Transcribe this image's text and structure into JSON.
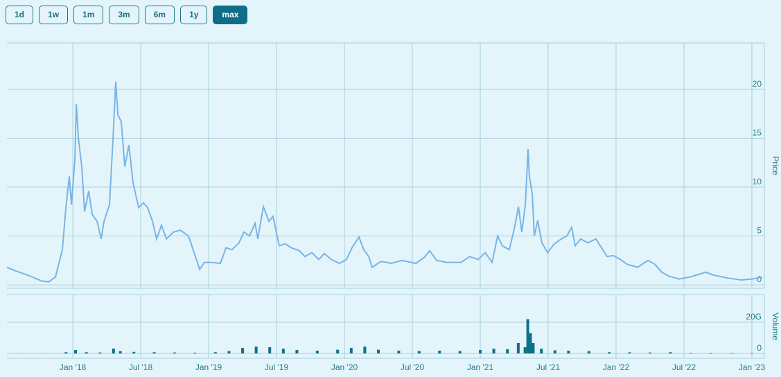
{
  "range_buttons": [
    "1d",
    "1w",
    "1m",
    "3m",
    "6m",
    "1y",
    "max"
  ],
  "selected_range": "max",
  "chart_data": [
    {
      "type": "line",
      "y_label": "Price",
      "color": "#7ab3e6",
      "grid": true,
      "xlim": [
        2017.515,
        2023.092
      ],
      "ylim": [
        -0.35,
        24.75
      ],
      "yticks": [
        0,
        5,
        10,
        15,
        20
      ],
      "x": [
        2017.515,
        2017.566,
        2017.668,
        2017.77,
        2017.821,
        2017.872,
        2017.923,
        2017.949,
        2017.974,
        2017.99,
        2018.015,
        2018.026,
        2018.041,
        2018.066,
        2018.087,
        2018.117,
        2018.143,
        2018.179,
        2018.209,
        2018.23,
        2018.27,
        2018.296,
        2018.316,
        2018.332,
        2018.357,
        2018.383,
        2018.413,
        2018.444,
        2018.485,
        2018.52,
        2018.551,
        2018.587,
        2018.617,
        2018.653,
        2018.689,
        2018.74,
        2018.791,
        2018.852,
        2018.893,
        2018.934,
        2018.969,
        2019.02,
        2019.087,
        2019.128,
        2019.173,
        2019.224,
        2019.26,
        2019.301,
        2019.342,
        2019.362,
        2019.403,
        2019.444,
        2019.474,
        2019.52,
        2019.566,
        2019.607,
        2019.668,
        2019.709,
        2019.76,
        2019.811,
        2019.852,
        2019.903,
        2019.964,
        2020.015,
        2020.056,
        2020.107,
        2020.143,
        2020.179,
        2020.204,
        2020.27,
        2020.347,
        2020.423,
        2020.526,
        2020.587,
        2020.628,
        2020.679,
        2020.755,
        2020.857,
        2020.923,
        2020.985,
        2021.036,
        2021.087,
        2021.128,
        2021.163,
        2021.214,
        2021.25,
        2021.281,
        2021.306,
        2021.332,
        2021.352,
        2021.362,
        2021.383,
        2021.398,
        2021.423,
        2021.454,
        2021.495,
        2021.546,
        2021.597,
        2021.638,
        2021.673,
        2021.699,
        2021.74,
        2021.791,
        2021.852,
        2021.893,
        2021.934,
        2021.98,
        2022.031,
        2022.082,
        2022.158,
        2022.235,
        2022.286,
        2022.337,
        2022.388,
        2022.464,
        2022.541,
        2022.617,
        2022.658,
        2022.719,
        2022.821,
        2022.923,
        2023.0,
        2023.077
      ],
      "values": [
        1.8,
        1.5,
        1.0,
        0.4,
        0.3,
        0.8,
        3.6,
        7.9,
        11.1,
        8.2,
        12.8,
        18.5,
        15.0,
        12.1,
        7.5,
        9.6,
        7.2,
        6.5,
        4.7,
        6.5,
        8.2,
        15.0,
        20.8,
        17.4,
        16.7,
        12.1,
        14.3,
        10.4,
        7.9,
        8.4,
        7.9,
        6.5,
        4.7,
        6.1,
        4.7,
        5.4,
        5.6,
        5.0,
        3.3,
        1.6,
        2.3,
        2.3,
        2.2,
        3.8,
        3.6,
        4.3,
        5.4,
        5.0,
        6.3,
        4.7,
        8.0,
        6.5,
        7.0,
        4.0,
        4.2,
        3.8,
        3.5,
        2.9,
        3.3,
        2.6,
        3.2,
        2.6,
        2.2,
        2.6,
        3.8,
        4.9,
        3.6,
        2.9,
        1.8,
        2.4,
        2.2,
        2.5,
        2.2,
        2.8,
        3.5,
        2.5,
        2.3,
        2.3,
        2.9,
        2.6,
        3.3,
        2.3,
        5.0,
        4.0,
        3.6,
        5.7,
        8.0,
        5.4,
        8.2,
        13.9,
        11.1,
        9.3,
        5.0,
        6.6,
        4.3,
        3.3,
        4.2,
        4.7,
        5.0,
        5.9,
        4.0,
        4.7,
        4.3,
        4.7,
        3.8,
        2.9,
        3.0,
        2.6,
        2.1,
        1.8,
        2.5,
        2.1,
        1.3,
        0.9,
        0.6,
        0.8,
        1.1,
        1.3,
        1.0,
        0.7,
        0.5,
        0.6,
        0.8
      ]
    },
    {
      "type": "bar",
      "y_label": "Volume",
      "color": "#0e6f8a",
      "grid": true,
      "xlim": [
        2017.515,
        2023.092
      ],
      "ylim": [
        -3.1,
        37.8
      ],
      "yticks": [
        0,
        {
          "value": 20,
          "label": "20G"
        }
      ],
      "xticks": [
        {
          "value": 2018.0,
          "label": "Jan '18"
        },
        {
          "value": 2018.5,
          "label": "Jul '18"
        },
        {
          "value": 2019.0,
          "label": "Jan '19"
        },
        {
          "value": 2019.5,
          "label": "Jul '19"
        },
        {
          "value": 2020.0,
          "label": "Jan '20"
        },
        {
          "value": 2020.5,
          "label": "Jul '20"
        },
        {
          "value": 2021.0,
          "label": "Jan '21"
        },
        {
          "value": 2021.5,
          "label": "Jul '21"
        },
        {
          "value": 2022.0,
          "label": "Jan '22"
        },
        {
          "value": 2022.5,
          "label": "Jul '22"
        },
        {
          "value": 2023.0,
          "label": "Jan '23"
        }
      ],
      "x": [
        2017.6,
        2017.8,
        2017.95,
        2018.02,
        2018.1,
        2018.2,
        2018.3,
        2018.35,
        2018.45,
        2018.6,
        2018.75,
        2018.9,
        2019.05,
        2019.15,
        2019.25,
        2019.35,
        2019.45,
        2019.55,
        2019.65,
        2019.8,
        2019.95,
        2020.05,
        2020.15,
        2020.25,
        2020.4,
        2020.55,
        2020.7,
        2020.85,
        2021.0,
        2021.1,
        2021.2,
        2021.28,
        2021.33,
        2021.35,
        2021.37,
        2021.39,
        2021.45,
        2021.55,
        2021.65,
        2021.8,
        2021.95,
        2022.1,
        2022.25,
        2022.4,
        2022.55,
        2022.7,
        2022.85,
        2023.0
      ],
      "values": [
        0.1,
        0.1,
        0.8,
        2.2,
        0.8,
        0.6,
        3.1,
        1.5,
        1.0,
        0.8,
        0.6,
        0.5,
        0.8,
        1.5,
        3.5,
        4.4,
        4.0,
        3.0,
        2.2,
        1.8,
        2.4,
        3.5,
        4.4,
        2.4,
        1.8,
        1.5,
        1.8,
        1.5,
        2.2,
        3.0,
        2.7,
        6.7,
        4.0,
        22.0,
        13.0,
        6.7,
        3.0,
        2.0,
        1.8,
        1.5,
        0.8,
        0.7,
        0.6,
        0.8,
        0.4,
        0.4,
        0.3,
        0.3
      ]
    }
  ]
}
